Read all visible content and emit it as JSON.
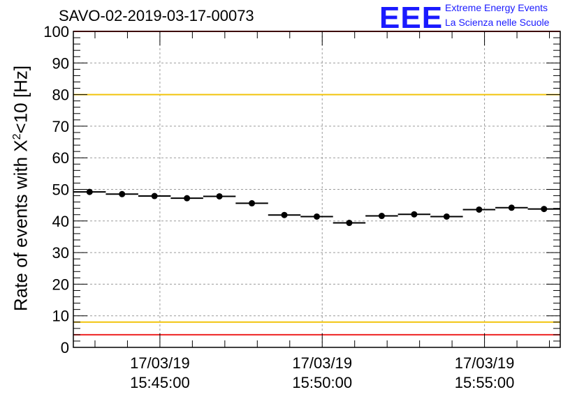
{
  "chart_data": {
    "type": "scatter",
    "title": "SAVO-02-2019-03-17-00073",
    "ylabel_parts": {
      "pre": "Rate of events with X",
      "sup": "2",
      "post": "<10 [Hz]"
    },
    "ylim": [
      0,
      100
    ],
    "yticks": [
      0,
      10,
      20,
      30,
      40,
      50,
      60,
      70,
      80,
      90,
      100
    ],
    "xticks": [
      {
        "date": "17/03/19",
        "time": "15:45:00",
        "x": "15:45:00"
      },
      {
        "date": "17/03/19",
        "time": "15:50:00",
        "x": "15:50:00"
      },
      {
        "date": "17/03/19",
        "time": "15:55:00",
        "x": "15:55:00"
      }
    ],
    "xlim": [
      "15:42:20",
      "15:57:20"
    ],
    "grid": true,
    "reference_lines": [
      {
        "y": 80,
        "color": "#f2c40c"
      },
      {
        "y": 8,
        "color": "#f2c40c"
      },
      {
        "y": 4,
        "color": "#ee2222"
      },
      {
        "y": 100,
        "color": "#ee2222"
      }
    ],
    "series": [
      {
        "x": [
          "15:42:50",
          "15:43:50",
          "15:44:50",
          "15:45:50",
          "15:46:50",
          "15:47:50",
          "15:48:50",
          "15:49:50",
          "15:50:50",
          "15:51:50",
          "15:52:50",
          "15:53:50",
          "15:54:50",
          "15:55:50",
          "15:56:50"
        ],
        "y": [
          49.2,
          48.5,
          47.9,
          47.2,
          47.8,
          45.6,
          41.9,
          41.4,
          39.4,
          41.6,
          42.1,
          41.4,
          43.6,
          44.2,
          43.8
        ],
        "bin_width_s": 60
      }
    ]
  },
  "logo": {
    "text": "EEE",
    "line1": "Extreme Energy Events",
    "line2": "La Scienza nelle Scuole"
  }
}
